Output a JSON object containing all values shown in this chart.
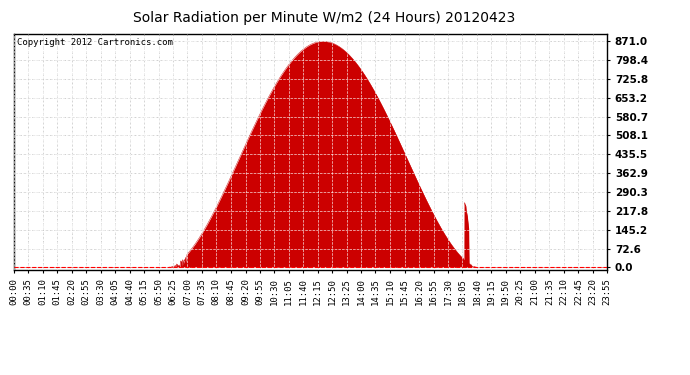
{
  "title": "Solar Radiation per Minute W/m2 (24 Hours) 20120423",
  "copyright_text": "Copyright 2012 Cartronics.com",
  "fill_color": "#cc0000",
  "line_color": "#cc0000",
  "background_color": "#ffffff",
  "grid_color": "#c8c8c8",
  "dashed_line_color": "#ff0000",
  "y_ticks": [
    0.0,
    72.6,
    145.2,
    217.8,
    290.3,
    362.9,
    435.5,
    508.1,
    580.7,
    653.2,
    725.8,
    798.4,
    871.0
  ],
  "ylim": [
    -10,
    900
  ],
  "x_tick_labels": [
    "00:00",
    "00:35",
    "01:10",
    "01:45",
    "02:20",
    "02:55",
    "03:30",
    "04:05",
    "04:40",
    "05:15",
    "05:50",
    "06:25",
    "07:00",
    "07:35",
    "08:10",
    "08:45",
    "09:20",
    "09:55",
    "10:30",
    "11:05",
    "11:40",
    "12:15",
    "12:50",
    "13:25",
    "14:00",
    "14:35",
    "15:10",
    "15:45",
    "16:20",
    "16:55",
    "17:30",
    "18:05",
    "18:40",
    "19:15",
    "19:50",
    "20:25",
    "21:00",
    "21:35",
    "22:10",
    "22:45",
    "23:20",
    "23:55"
  ],
  "peak_value": 871.0,
  "sunrise_minute": 370,
  "sunset_minute": 1130,
  "total_minutes": 1440
}
